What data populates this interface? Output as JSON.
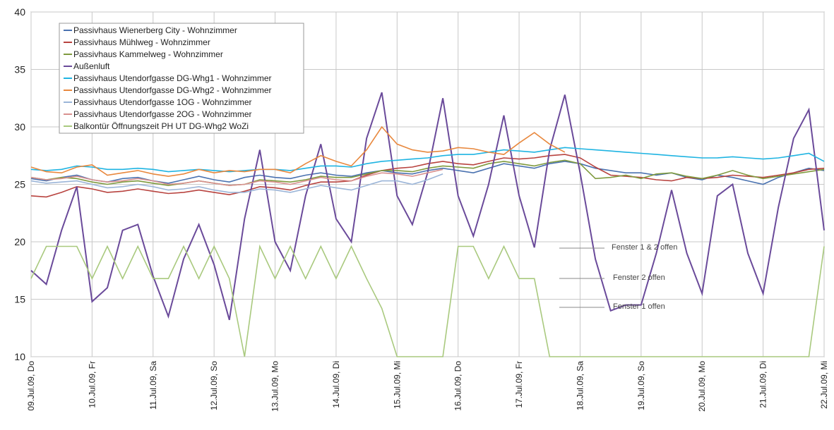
{
  "chart_data": {
    "type": "line",
    "categories": [
      "09.Jul.09, Do",
      null,
      null,
      null,
      "10.Jul.09, Fr",
      null,
      null,
      null,
      "11.Jul.09, Sa",
      null,
      null,
      null,
      "12.Jul.09, So",
      null,
      null,
      null,
      "13.Jul.09, Mo",
      null,
      null,
      null,
      "14.Jul.09, Di",
      null,
      null,
      null,
      "15.Jul.09, Mi",
      null,
      null,
      null,
      "16.Jul.09, Do",
      null,
      null,
      null,
      "17.Jul.09, Fr",
      null,
      null,
      null,
      "18.Jul.09, Sa",
      null,
      null,
      null,
      "19.Jul.09, So",
      null,
      null,
      null,
      "20.Jul.09, Mo",
      null,
      null,
      null,
      "21.Jul.09, Di",
      null,
      null,
      null,
      "22.Jul.09, Mi"
    ],
    "ylim": [
      10,
      40
    ],
    "yticks": [
      10,
      15,
      20,
      25,
      30,
      35,
      40
    ],
    "grid": true,
    "series": [
      {
        "name": "Passivhaus Wienerberg City - Wohnzimmer",
        "color": "#4a72b0",
        "values": [
          25.5,
          25.3,
          25.6,
          25.8,
          25.4,
          25.2,
          25.5,
          25.6,
          25.3,
          25.1,
          25.4,
          25.7,
          25.4,
          25.2,
          25.6,
          25.8,
          25.6,
          25.5,
          25.8,
          26.0,
          25.8,
          25.7,
          26.0,
          26.2,
          26.0,
          25.9,
          26.2,
          26.4,
          26.2,
          26.0,
          26.4,
          26.8,
          26.6,
          26.4,
          26.8,
          27.0,
          26.8,
          26.4,
          26.2,
          26.0,
          26.0,
          25.8,
          26.0,
          25.6,
          25.4,
          25.8,
          25.6,
          25.3,
          25.0,
          25.6,
          26.0,
          26.4,
          26.2
        ]
      },
      {
        "name": "Passivhaus Mühlweg - Wohnzimmer",
        "color": "#b8433f",
        "values": [
          24.0,
          23.9,
          24.3,
          24.8,
          24.6,
          24.3,
          24.4,
          24.6,
          24.4,
          24.2,
          24.3,
          24.5,
          24.3,
          24.1,
          24.4,
          24.8,
          24.7,
          24.5,
          24.9,
          25.2,
          25.2,
          25.3,
          25.8,
          26.2,
          26.4,
          26.5,
          26.8,
          27.0,
          26.8,
          26.7,
          27.0,
          27.3,
          27.2,
          27.3,
          27.5,
          27.6,
          27.3,
          26.5,
          25.8,
          25.7,
          25.6,
          25.4,
          25.3,
          25.6,
          25.5,
          25.6,
          25.8,
          25.7,
          25.6,
          25.8,
          26.0,
          26.3,
          26.4
        ]
      },
      {
        "name": "Passivhaus Kammelweg - Wohnzimmer",
        "color": "#7f9a3e",
        "values": [
          25.6,
          25.4,
          25.6,
          25.5,
          25.2,
          25.0,
          25.2,
          25.3,
          25.1,
          24.9,
          25.1,
          25.3,
          25.1,
          24.9,
          25.0,
          25.4,
          25.3,
          25.2,
          25.4,
          25.7,
          25.6,
          25.6,
          25.9,
          26.2,
          26.2,
          26.1,
          26.4,
          26.6,
          26.5,
          26.4,
          26.8,
          27.0,
          26.8,
          26.6,
          26.9,
          27.1,
          26.8,
          25.5,
          25.6,
          25.8,
          25.5,
          25.9,
          26.0,
          25.7,
          25.5,
          25.8,
          26.2,
          25.8,
          25.5,
          25.7,
          25.9,
          26.1,
          26.3
        ]
      },
      {
        "name": "Außenluft",
        "color": "#6a4a9a",
        "values": [
          17.5,
          16.3,
          21,
          24.8,
          14.8,
          16,
          21,
          21.5,
          17,
          13.5,
          18.5,
          21.5,
          18,
          13.2,
          22,
          28,
          20,
          17.5,
          24,
          28.5,
          22,
          20,
          29,
          33,
          24,
          21.5,
          26,
          32.5,
          24,
          20.5,
          25,
          31,
          24,
          19.5,
          28,
          32.8,
          26,
          18.5,
          14,
          14.5,
          14.5,
          19,
          24.5,
          19,
          15.5,
          24,
          25,
          19,
          15.5,
          23,
          29,
          31.5,
          21
        ]
      },
      {
        "name": "Passivhaus Utendorfgasse DG-Whg1 - Wohnzimmer",
        "color": "#1fb4e2",
        "values": [
          26.3,
          26.2,
          26.3,
          26.6,
          26.5,
          26.3,
          26.3,
          26.4,
          26.3,
          26.1,
          26.2,
          26.3,
          26.2,
          26.1,
          26.2,
          26.3,
          26.3,
          26.2,
          26.4,
          26.6,
          26.6,
          26.5,
          26.8,
          27.0,
          27.1,
          27.2,
          27.3,
          27.5,
          27.6,
          27.6,
          27.8,
          28.0,
          27.9,
          27.8,
          28.0,
          28.2,
          28.1,
          28.0,
          27.9,
          27.8,
          27.7,
          27.6,
          27.5,
          27.4,
          27.3,
          27.3,
          27.4,
          27.3,
          27.2,
          27.3,
          27.5,
          27.7,
          27.0
        ]
      },
      {
        "name": "Passivhaus Utendorfgasse DG-Whg2 - Wohnzimmer",
        "color": "#e8883e",
        "values": [
          26.5,
          26.1,
          26.0,
          26.5,
          26.7,
          25.8,
          26.0,
          26.2,
          25.9,
          25.7,
          25.9,
          26.3,
          26.0,
          26.2,
          26.1,
          26.3,
          26.3,
          26.0,
          26.8,
          27.5,
          27.0,
          26.6,
          28.0,
          30.0,
          28.5,
          28.0,
          27.8,
          27.9,
          28.2,
          28.1,
          27.8,
          27.6,
          28.6,
          29.5,
          28.5,
          27.8,
          null,
          null,
          null,
          null,
          null,
          null,
          null,
          null,
          null,
          null,
          null,
          null,
          null,
          null,
          null,
          null,
          null
        ]
      },
      {
        "name": "Passivhaus Utendorfgasse 1OG - Wohnzimmer",
        "color": "#9bb5d8",
        "values": [
          25.3,
          25.1,
          25.2,
          25.3,
          25.0,
          24.7,
          24.8,
          25.0,
          24.8,
          24.5,
          24.6,
          24.8,
          24.5,
          24.3,
          24.3,
          24.6,
          24.5,
          24.3,
          24.6,
          24.9,
          24.7,
          24.5,
          24.9,
          25.3,
          25.3,
          25.0,
          25.4,
          25.9,
          null,
          null,
          null,
          null,
          null,
          null,
          null,
          null,
          null,
          null,
          null,
          null,
          null,
          null,
          null,
          null,
          null,
          null,
          null,
          null,
          null,
          null,
          null,
          null,
          null
        ]
      },
      {
        "name": "Passivhaus Utendorfgasse 2OG - Wohnzimmer",
        "color": "#d9918f",
        "values": [
          25.6,
          25.4,
          25.5,
          25.7,
          25.4,
          25.2,
          25.3,
          25.5,
          25.3,
          25.0,
          25.1,
          25.3,
          25.1,
          24.9,
          25.0,
          25.3,
          25.2,
          25.0,
          25.3,
          25.6,
          25.4,
          25.3,
          25.7,
          26.0,
          25.9,
          25.7,
          26.0,
          26.3,
          null,
          null,
          null,
          null,
          null,
          null,
          null,
          null,
          null,
          null,
          null,
          null,
          null,
          null,
          null,
          null,
          null,
          null,
          null,
          null,
          null,
          null,
          null,
          null,
          null
        ]
      },
      {
        "name": "Balkontür Öffnungszeit PH UT DG-Whg2 WoZi",
        "color": "#a9c97e",
        "values": [
          16.8,
          19.6,
          19.6,
          19.6,
          16.8,
          19.6,
          16.8,
          19.6,
          16.8,
          16.8,
          19.6,
          16.8,
          19.6,
          16.8,
          10,
          19.6,
          16.8,
          19.6,
          16.8,
          19.6,
          16.8,
          19.6,
          16.8,
          14.2,
          10,
          10,
          10,
          10,
          19.6,
          19.6,
          16.8,
          19.6,
          16.8,
          16.8,
          10,
          10,
          10,
          10,
          10,
          10,
          10,
          10,
          10,
          10,
          10,
          10,
          10,
          10,
          10,
          10,
          10,
          10,
          19.6
        ]
      }
    ],
    "annotations": [
      "Fenster 1 & 2 offen",
      "Fenster 2 offen",
      "Fenster 1 offen"
    ]
  }
}
